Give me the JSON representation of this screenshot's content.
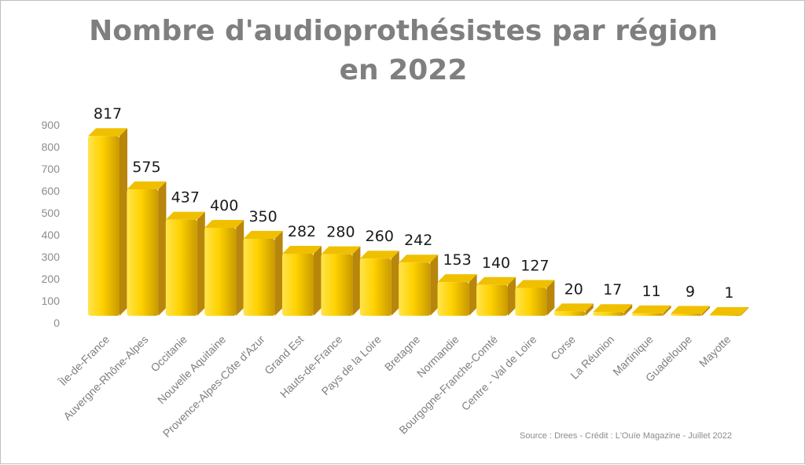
{
  "chart_data": {
    "type": "bar",
    "title_lines": [
      "Nombre d'audioprothésistes par région",
      "en 2022"
    ],
    "categories": [
      "Île-de-France",
      "Auvergne-Rhône-Alpes",
      "Occitanie",
      "Nouvelle Aquitaine",
      "Provence-Alpes-Côte d'Azur",
      "Grand Est",
      "Hauts-de-France",
      "Pays de la Loire",
      "Bretagne",
      "Normandie",
      "Bourgogne-Franche-Comté",
      "Centre - Val de Loire",
      "Corse",
      "La Réunion",
      "Martinique",
      "Guadeloupe",
      "Mayotte"
    ],
    "values": [
      817,
      575,
      437,
      400,
      350,
      282,
      280,
      260,
      242,
      153,
      140,
      127,
      20,
      17,
      11,
      9,
      1
    ],
    "yticks": [
      "0",
      "100",
      "200",
      "300",
      "400",
      "500",
      "600",
      "700",
      "800",
      "900"
    ],
    "ylim": [
      0,
      900
    ],
    "xlabel": "",
    "ylabel": "",
    "grid": false,
    "legend": "none",
    "bar_colors": {
      "front_light": "#ffe44d",
      "front_mid": "#ffd200",
      "front_dark": "#c99a00",
      "top": "#f0c000",
      "side": "#b8860b"
    },
    "source": "Source : Drees - Crédit : L'Ouïe Magazine - Juillet 2022"
  }
}
